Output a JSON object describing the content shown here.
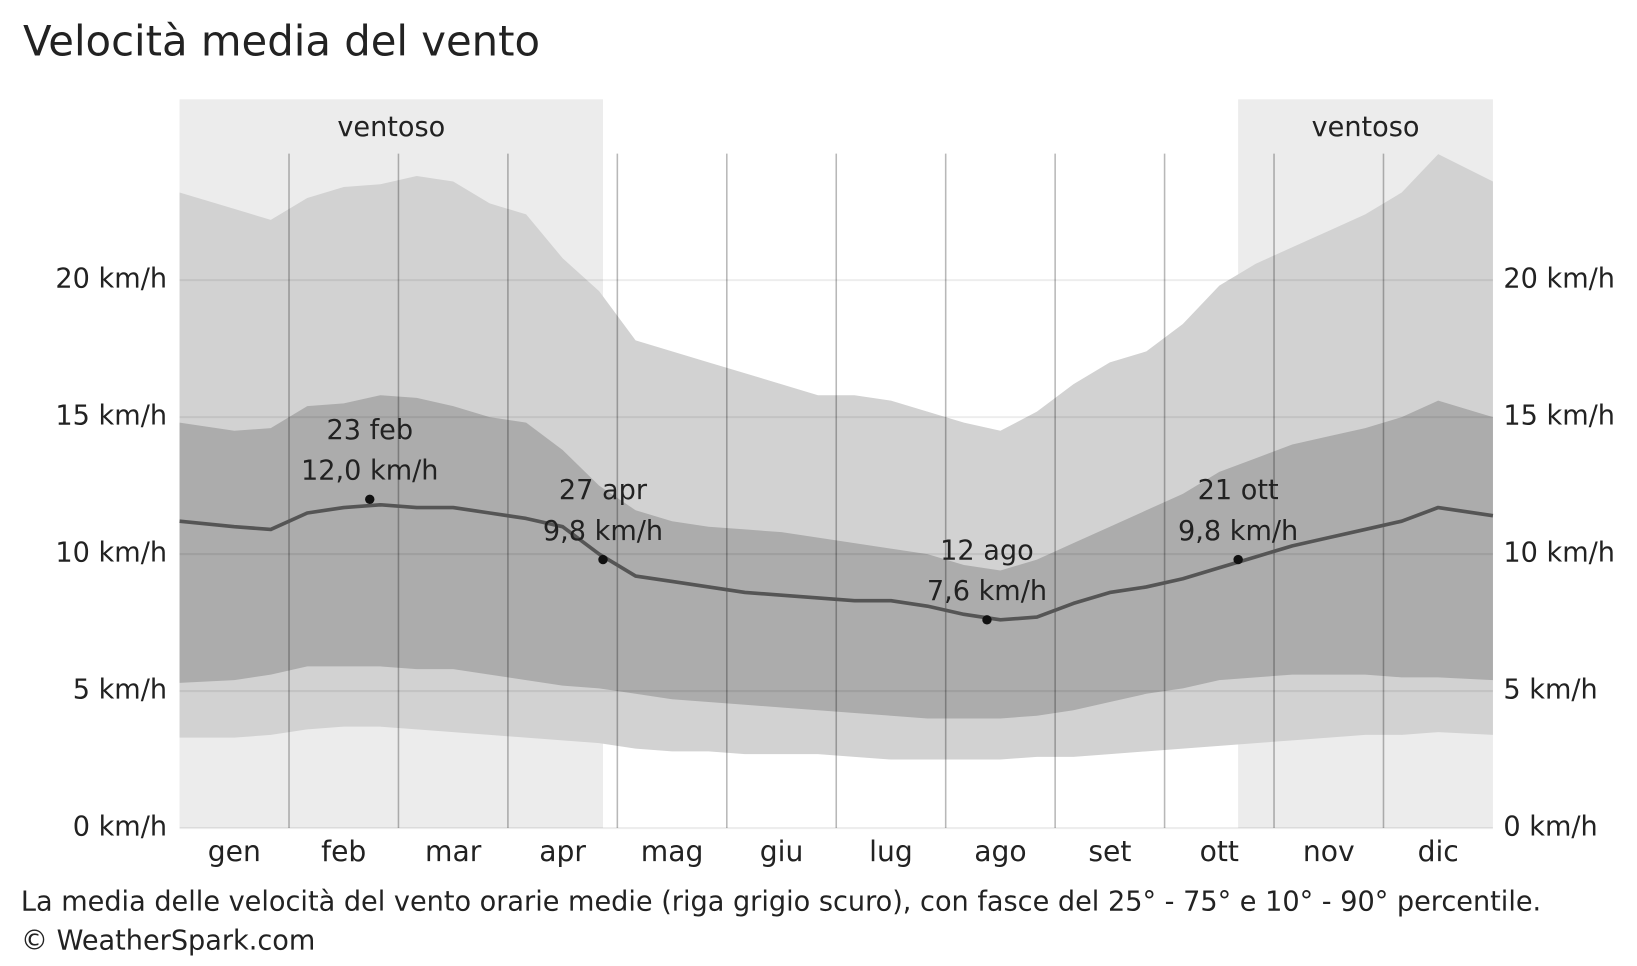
{
  "chart_data": {
    "type": "area",
    "title": "Velocità media del vento",
    "categories": [
      null,
      "gen",
      null,
      null,
      "feb",
      null,
      null,
      "mar",
      null,
      null,
      "apr",
      null,
      null,
      "mag",
      null,
      null,
      "giu",
      null,
      null,
      "lug",
      null,
      null,
      "ago",
      null,
      null,
      "set",
      null,
      null,
      "ott",
      null,
      null,
      "nov",
      null,
      null,
      "dic",
      null
    ],
    "series": [
      {
        "color": "#d2d2d2",
        "values": [
          3.3,
          3.3,
          3.4,
          3.6,
          3.7,
          3.7,
          3.6,
          3.5,
          3.4,
          3.3,
          3.2,
          3.1,
          2.9,
          2.8,
          2.8,
          2.7,
          2.7,
          2.7,
          2.6,
          2.5,
          2.5,
          2.5,
          2.5,
          2.6,
          2.6,
          2.7,
          2.8,
          2.9,
          3.0,
          3.1,
          3.2,
          3.3,
          3.4,
          3.4,
          3.5,
          3.4
        ]
      },
      {
        "color": "#acacac",
        "values": [
          5.3,
          5.4,
          5.6,
          5.9,
          5.9,
          5.9,
          5.8,
          5.8,
          5.6,
          5.4,
          5.2,
          5.1,
          4.9,
          4.7,
          4.6,
          4.5,
          4.4,
          4.3,
          4.2,
          4.1,
          4.0,
          4.0,
          4.0,
          4.1,
          4.3,
          4.6,
          4.9,
          5.1,
          5.4,
          5.5,
          5.6,
          5.6,
          5.6,
          5.5,
          5.5,
          5.4
        ]
      },
      {
        "color": "#555555",
        "values": [
          11.2,
          11.0,
          10.9,
          11.5,
          11.7,
          11.8,
          11.7,
          11.7,
          11.5,
          11.3,
          11.0,
          10.0,
          9.2,
          9.0,
          8.8,
          8.6,
          8.5,
          8.4,
          8.3,
          8.3,
          8.1,
          7.8,
          7.6,
          7.7,
          8.2,
          8.6,
          8.8,
          9.1,
          9.5,
          9.9,
          10.3,
          10.6,
          10.9,
          11.2,
          11.7,
          11.4
        ]
      },
      {
        "color": "#acacac",
        "values": [
          14.8,
          14.5,
          14.6,
          15.4,
          15.5,
          15.8,
          15.7,
          15.4,
          15.0,
          14.8,
          13.8,
          12.5,
          11.6,
          11.2,
          11.0,
          10.9,
          10.8,
          10.6,
          10.4,
          10.2,
          10.0,
          9.6,
          9.4,
          9.8,
          10.4,
          11.0,
          11.6,
          12.2,
          13.0,
          13.5,
          14.0,
          14.3,
          14.6,
          15.0,
          15.6,
          15.0
        ]
      },
      {
        "color": "#d2d2d2",
        "values": [
          23.2,
          22.6,
          22.2,
          23.0,
          23.4,
          23.5,
          23.8,
          23.6,
          22.8,
          22.4,
          20.8,
          19.6,
          17.8,
          17.4,
          17.0,
          16.6,
          16.2,
          15.8,
          15.8,
          15.6,
          15.2,
          14.8,
          14.5,
          15.2,
          16.2,
          17.0,
          17.4,
          18.4,
          19.8,
          20.6,
          21.2,
          21.8,
          22.4,
          23.2,
          24.6,
          23.6
        ]
      }
    ],
    "ylim": [
      0,
      26.6
    ],
    "yticks": [
      {
        "value": 0,
        "label": "0 km/h"
      },
      {
        "value": 5,
        "label": "5 km/h"
      },
      {
        "value": 10,
        "label": "10 km/h"
      },
      {
        "value": 15,
        "label": "15 km/h"
      },
      {
        "value": 20,
        "label": "20 km/h"
      }
    ],
    "grid": true,
    "regions": [
      "ventoso",
      "ventoso"
    ],
    "annotations": [
      {
        "date": "23 feb",
        "label": "12,0 km/h",
        "value": 12.0
      },
      {
        "date": "27 apr",
        "label": "9,8 km/h",
        "value": 9.8
      },
      {
        "date": "12 ago",
        "label": "7,6 km/h",
        "value": 7.6
      },
      {
        "date": "21 ott",
        "label": "9,8 km/h",
        "value": 9.8
      }
    ],
    "caption": "La media delle velocità del vento orarie medie (riga grigio scuro), con fasce del 25° - 75° e 10° - 90° percentile.",
    "source": "© WeatherSpark.com"
  }
}
